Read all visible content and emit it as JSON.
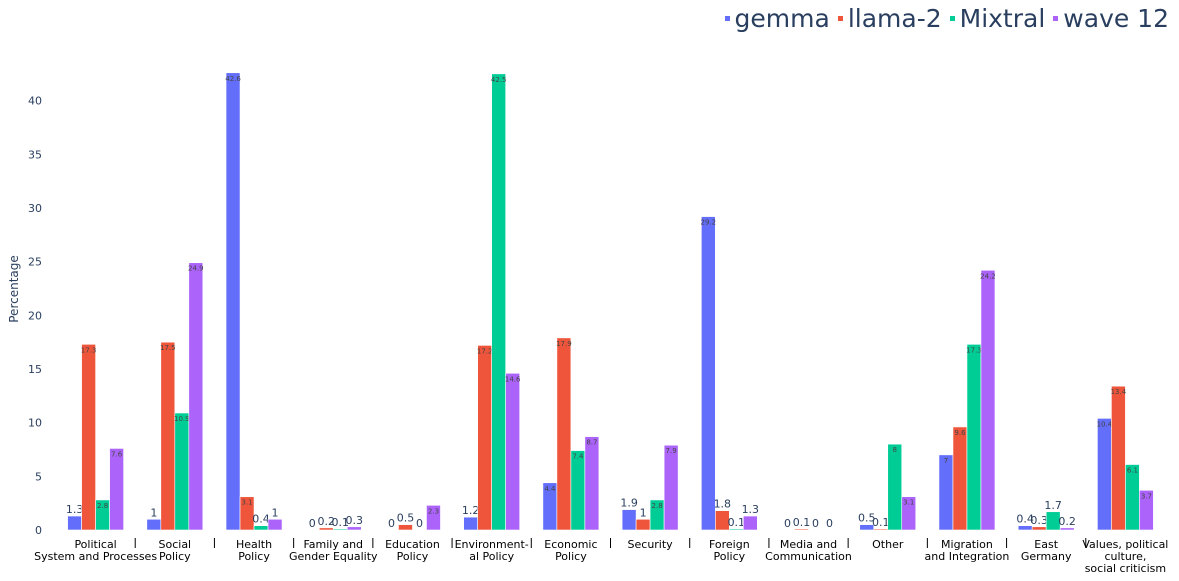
{
  "chart_data": {
    "type": "bar",
    "ylabel": "Percentage",
    "ylim": [
      0,
      45
    ],
    "yticks": [
      0,
      5,
      10,
      15,
      20,
      25,
      30,
      35,
      40
    ],
    "legend_position": "top-right",
    "categories": [
      [
        "Political",
        "System and Processes"
      ],
      [
        "Social",
        "Policy"
      ],
      [
        "Health",
        "Policy"
      ],
      [
        "Family and",
        "Gender Equality"
      ],
      [
        "Education",
        "Policy"
      ],
      [
        "Environment-",
        "al  Policy"
      ],
      [
        "Economic",
        "Policy"
      ],
      [
        "Security"
      ],
      [
        "Foreign",
        "Policy"
      ],
      [
        "Media and",
        "Communication"
      ],
      [
        "Other"
      ],
      [
        "Migration",
        "and Integration"
      ],
      [
        "East",
        "Germany"
      ],
      [
        "Values, political",
        "culture,",
        "social criticism"
      ]
    ],
    "series": [
      {
        "name": "gemma",
        "color": "#636efa",
        "values": [
          1.3,
          1,
          42.6,
          0,
          0,
          1.2,
          4.4,
          1.9,
          29.2,
          0,
          0.5,
          7,
          0.4,
          10.4
        ],
        "labels": [
          "1.3",
          "1",
          "42.6",
          "0",
          "0",
          "1.2",
          "4.4",
          "1.9",
          "29.2",
          "0",
          "0.5",
          "7",
          "0.4",
          "10.4"
        ]
      },
      {
        "name": "llama-2",
        "color": "#ef553b",
        "values": [
          17.3,
          17.5,
          3.1,
          0.2,
          0.5,
          17.2,
          17.9,
          1,
          1.8,
          0.1,
          0.1,
          9.6,
          0.3,
          13.4
        ],
        "labels": [
          "17.3",
          "17.5",
          "3.1",
          "0.2",
          "0.5",
          "17.2",
          "17.9",
          "1",
          "1.8",
          "0.1",
          "0.1",
          "9.6",
          "0.3",
          "13.4"
        ]
      },
      {
        "name": "Mixtral",
        "color": "#00cc96",
        "values": [
          2.8,
          10.9,
          0.4,
          0.1,
          0,
          42.5,
          7.4,
          2.8,
          0.1,
          0,
          8,
          17.3,
          1.7,
          6.1
        ],
        "labels": [
          "2.8",
          "10.9",
          "0.4",
          "0.1",
          "0",
          "42.5",
          "7.4",
          "2.8",
          "0.1",
          "0",
          "8",
          "17.3",
          "1.7",
          "6.1"
        ]
      },
      {
        "name": "wave 12",
        "color": "#ab63fa",
        "values": [
          7.6,
          24.9,
          1,
          0.3,
          2.3,
          14.6,
          8.7,
          7.9,
          1.3,
          0,
          3.1,
          24.2,
          0.2,
          3.7
        ],
        "labels": [
          "7.6",
          "24.9",
          "1",
          "0.3",
          "2.3",
          "14.6",
          "8.7",
          "7.9",
          "1.3",
          "0",
          "3.1",
          "24.2",
          "0.2",
          "3.7"
        ]
      }
    ]
  }
}
